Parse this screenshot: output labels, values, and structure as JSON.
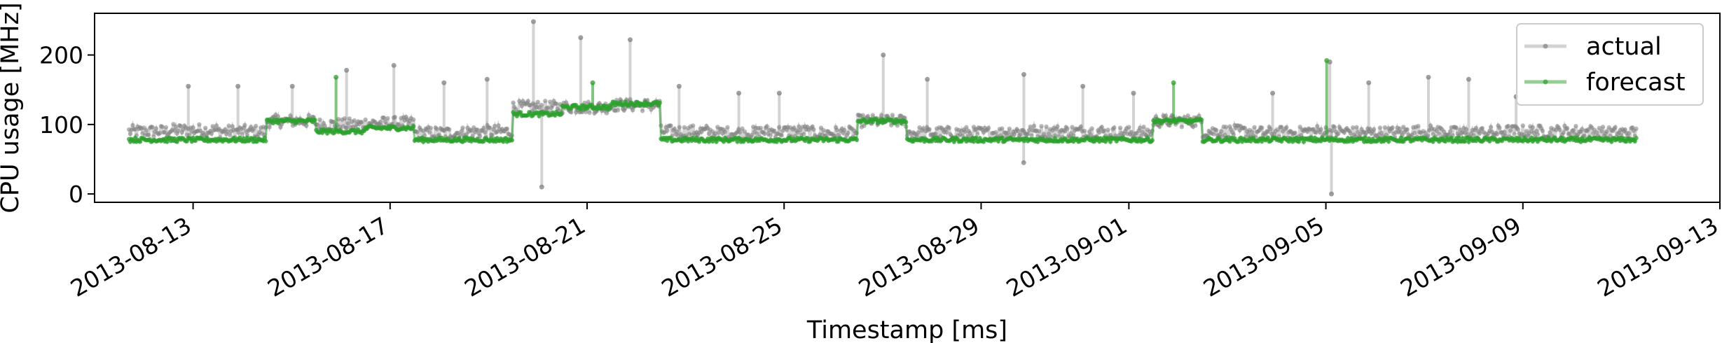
{
  "chart_data": {
    "type": "line",
    "xlabel": "Timestamp [ms]",
    "ylabel": "CPU usage [MHz]",
    "x_ticks": [
      "2013-08-13",
      "2013-08-17",
      "2013-08-21",
      "2013-08-25",
      "2013-08-29",
      "2013-09-01",
      "2013-09-05",
      "2013-09-09",
      "2013-09-13"
    ],
    "y_ticks": [
      0,
      100,
      200
    ],
    "xlim": [
      "2013-08-11",
      "2013-09-13"
    ],
    "ylim": [
      -12,
      260
    ],
    "grid": false,
    "legend": {
      "placement": "top-right"
    },
    "series": [
      {
        "name": "actual",
        "color": "#808080",
        "x": [
          "2013-08-12",
          "2013-08-13",
          "2013-08-14",
          "2013-08-15",
          "2013-08-16",
          "2013-08-17",
          "2013-08-18",
          "2013-08-19",
          "2013-08-20",
          "2013-08-21",
          "2013-08-22",
          "2013-08-23",
          "2013-08-24",
          "2013-08-25",
          "2013-08-26",
          "2013-08-27",
          "2013-08-28",
          "2013-08-29",
          "2013-08-30",
          "2013-08-31",
          "2013-09-01",
          "2013-09-02",
          "2013-09-03",
          "2013-09-04",
          "2013-09-05",
          "2013-09-06",
          "2013-09-07",
          "2013-09-08",
          "2013-09-09",
          "2013-09-10",
          "2013-09-11"
        ],
        "values": [
          90,
          92,
          90,
          105,
          100,
          102,
          88,
          90,
          125,
          125,
          128,
          90,
          88,
          90,
          88,
          105,
          88,
          88,
          90,
          90,
          88,
          105,
          90,
          88,
          90,
          88,
          90,
          88,
          90,
          90,
          88
        ],
        "spikes": [
          {
            "x": "2013-08-13",
            "y": 155
          },
          {
            "x": "2013-08-14",
            "y": 155
          },
          {
            "x": "2013-08-15",
            "y": 155
          },
          {
            "x": "2013-08-16",
            "y": 178
          },
          {
            "x": "2013-08-17",
            "y": 185
          },
          {
            "x": "2013-08-18",
            "y": 160
          },
          {
            "x": "2013-08-19",
            "y": 165
          },
          {
            "x": "2013-08-20",
            "y": 10
          },
          {
            "x": "2013-08-20",
            "y": 248
          },
          {
            "x": "2013-08-21",
            "y": 225
          },
          {
            "x": "2013-08-22",
            "y": 222
          },
          {
            "x": "2013-08-23",
            "y": 155
          },
          {
            "x": "2013-08-24",
            "y": 145
          },
          {
            "x": "2013-08-25",
            "y": 145
          },
          {
            "x": "2013-08-27",
            "y": 200
          },
          {
            "x": "2013-08-28",
            "y": 165
          },
          {
            "x": "2013-08-30",
            "y": 45
          },
          {
            "x": "2013-08-30",
            "y": 172
          },
          {
            "x": "2013-08-31",
            "y": 155
          },
          {
            "x": "2013-09-01",
            "y": 145
          },
          {
            "x": "2013-09-04",
            "y": 145
          },
          {
            "x": "2013-09-05",
            "y": 0
          },
          {
            "x": "2013-09-05",
            "y": 190
          },
          {
            "x": "2013-09-06",
            "y": 160
          },
          {
            "x": "2013-09-07",
            "y": 168
          },
          {
            "x": "2013-09-08",
            "y": 165
          },
          {
            "x": "2013-09-09",
            "y": 140
          }
        ]
      },
      {
        "name": "forecast",
        "color": "#2ca02c",
        "x": [
          "2013-08-12",
          "2013-08-13",
          "2013-08-14",
          "2013-08-15",
          "2013-08-16",
          "2013-08-17",
          "2013-08-18",
          "2013-08-19",
          "2013-08-20",
          "2013-08-21",
          "2013-08-22",
          "2013-08-23",
          "2013-08-24",
          "2013-08-25",
          "2013-08-26",
          "2013-08-27",
          "2013-08-28",
          "2013-08-29",
          "2013-08-30",
          "2013-08-31",
          "2013-09-01",
          "2013-09-02",
          "2013-09-03",
          "2013-09-04",
          "2013-09-05",
          "2013-09-06",
          "2013-09-07",
          "2013-09-08",
          "2013-09-09",
          "2013-09-10",
          "2013-09-11"
        ],
        "values": [
          78,
          78,
          78,
          105,
          90,
          95,
          78,
          78,
          115,
          125,
          130,
          78,
          78,
          78,
          78,
          105,
          78,
          78,
          78,
          78,
          78,
          105,
          78,
          78,
          78,
          78,
          78,
          78,
          78,
          78,
          78
        ],
        "spikes": [
          {
            "x": "2013-08-16",
            "y": 168
          },
          {
            "x": "2013-08-21",
            "y": 160
          },
          {
            "x": "2013-09-02",
            "y": 160
          },
          {
            "x": "2013-09-05",
            "y": 192
          }
        ]
      }
    ]
  }
}
